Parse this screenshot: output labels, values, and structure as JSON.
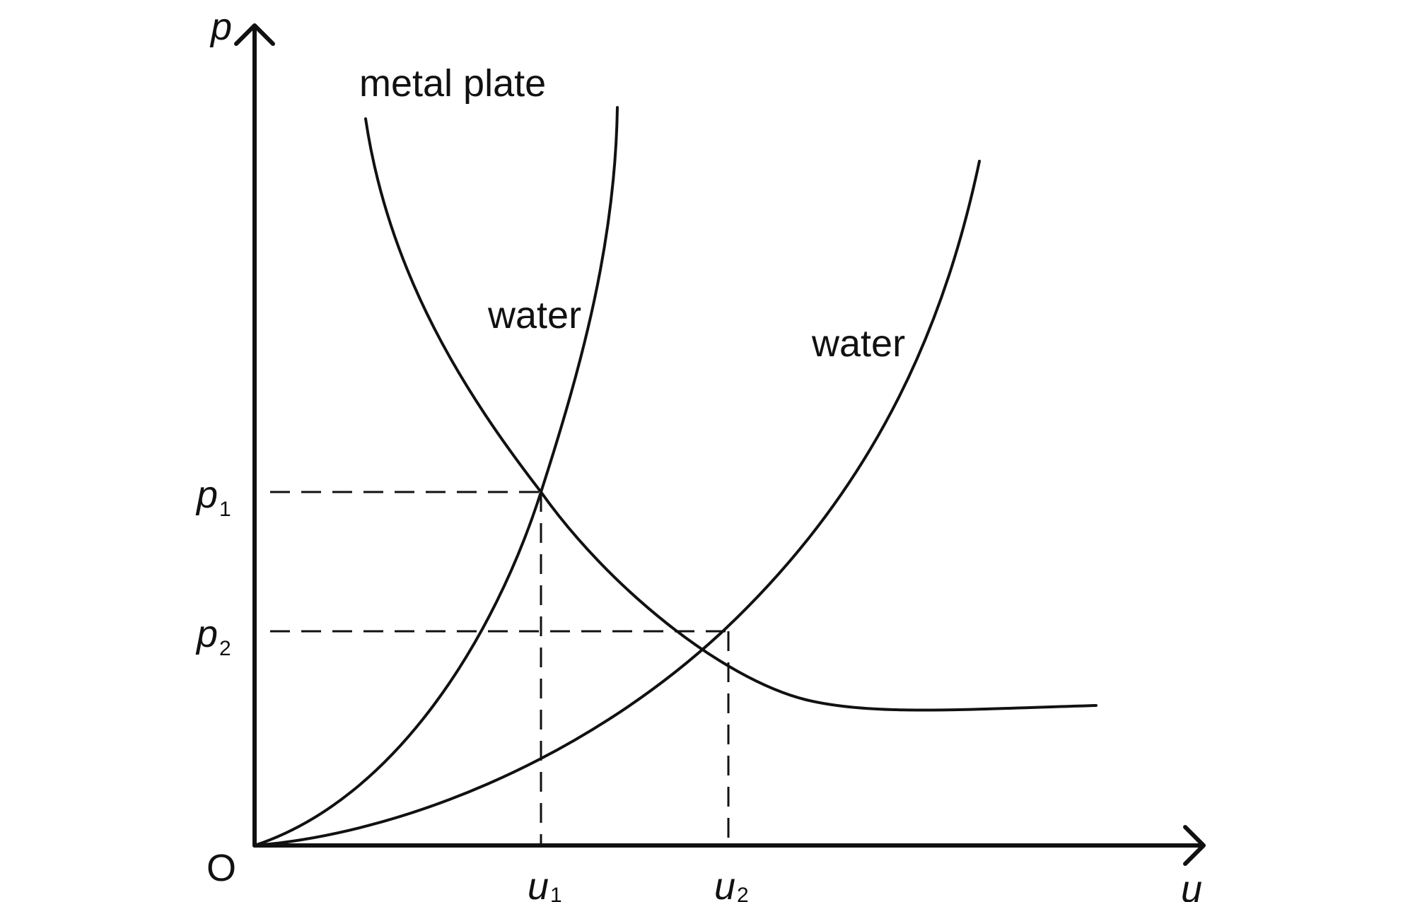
{
  "chart_data": {
    "type": "line",
    "title": "",
    "xlabel": "u",
    "ylabel": "p",
    "origin_label": "O",
    "x_ticks": [
      {
        "base": "u",
        "sub": "1"
      },
      {
        "base": "u",
        "sub": "2"
      }
    ],
    "y_ticks": [
      {
        "base": "p",
        "sub": "1"
      },
      {
        "base": "p",
        "sub": "2"
      }
    ],
    "series": [
      {
        "name": "metal plate",
        "shape": "decreasing convex curve through (u1, p1) and (u2, p2)"
      },
      {
        "name": "water",
        "shape": "steeper increasing curve from O through (u1, p1)"
      },
      {
        "name": "water",
        "shape": "flatter increasing curve from O through (u2, p2)"
      }
    ],
    "intersections": [
      {
        "x": "u1",
        "y": "p1"
      },
      {
        "x": "u2",
        "y": "p2"
      }
    ],
    "grid": false,
    "legend": "none",
    "colors": {
      "line": "#111111",
      "background": "#ffffff"
    }
  }
}
